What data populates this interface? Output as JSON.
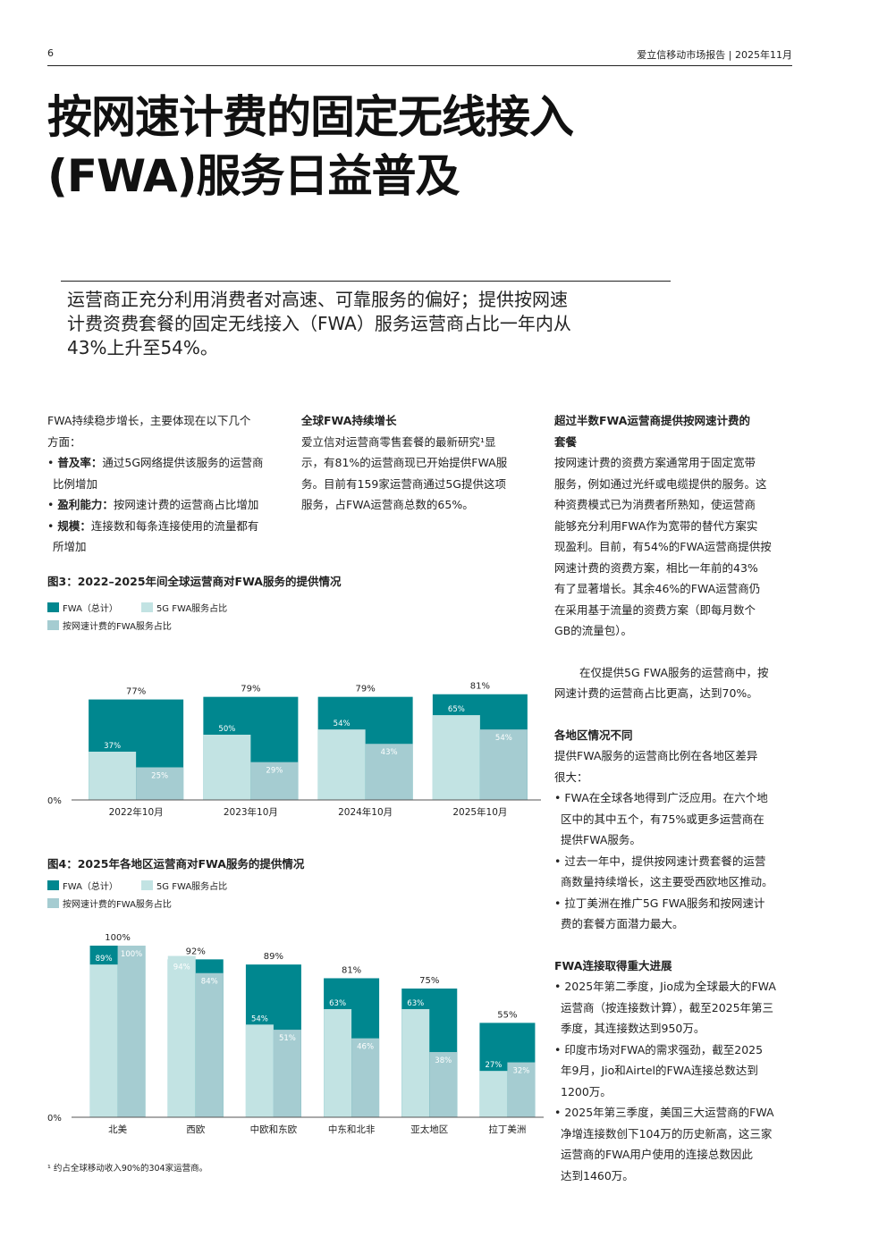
{
  "header": {
    "page_number": "6",
    "running_title": "爱立信移动市场报告 | 2025年11月"
  },
  "title": {
    "line1": "按网速计费的固定无线接入",
    "line2": "(FWA)服务日益普及"
  },
  "lead": {
    "line1": "运营商正充分利用消费者对高速、可靠服务的偏好；提供按网速",
    "line2": "计费资费套餐的固定无线接入（FWA）服务运营商占比一年内从",
    "line3": "43%上升至54%。"
  },
  "col1": {
    "intro1": "FWA持续稳步增长，主要体现在以下几个",
    "intro2": "方面：",
    "b1_term": "普及率：",
    "b1_text": "通过5G网络提供该服务的运营商",
    "b1_cont": "比例增加",
    "b2_term": "盈利能力：",
    "b2_text": "按网速计费的运营商占比增加",
    "b3_term": "规模：",
    "b3_text": "连接数和每条连接使用的流量都有",
    "b3_cont": "所增加"
  },
  "col2": {
    "heading": "全球FWA持续增长",
    "l1": "爱立信对运营商零售套餐的最新研究¹显",
    "l2": "示，有81%的运营商现已开始提供FWA服",
    "l3": "务。目前有159家运营商通过5G提供这项",
    "l4": "服务，占FWA运营商总数的65%。"
  },
  "col3": {
    "h1a": "超过半数FWA运营商提供按网速计费的",
    "h1b": "套餐",
    "p1": [
      "按网速计费的资费方案通常用于固定宽带",
      "服务，例如通过光纤或电缆提供的服务。这",
      "种资费模式已为消费者所熟知，使运营商",
      "能够充分利用FWA作为宽带的替代方案实",
      "现盈利。目前，有54%的FWA运营商提供按",
      "网速计费的资费方案，相比一年前的43%",
      "有了显著增长。其余46%的FWA运营商仍",
      "在采用基于流量的资费方案（即每月数个",
      "GB的流量包）。"
    ],
    "p2a": "在仅提供5G FWA服务的运营商中，按",
    "p2b": "网速计费的运营商占比更高，达到70%。",
    "h2": "各地区情况不同",
    "p3a": "提供FWA服务的运营商比例在各地区差异",
    "p3b": "很大：",
    "b1a": "• FWA在全球各地得到广泛应用。在六个地",
    "b1b": "区中的其中五个，有75%或更多运营商在",
    "b1c": "提供FWA服务。",
    "b2a": "• 过去一年中，提供按网速计费套餐的运营",
    "b2b": "商数量持续增长，这主要受西欧地区推动。",
    "b3a": "• 拉丁美洲在推广5G FWA服务和按网速计",
    "b3b": "费的套餐方面潜力最大。",
    "h3": "FWA连接取得重大进展",
    "c1a": "• 2025年第二季度，Jio成为全球最大的FWA",
    "c1b": "运营商（按连接数计算），截至2025年第三",
    "c1c": "季度，其连接数达到950万。",
    "c2a": "• 印度市场对FWA的需求强劲，截至2025",
    "c2b": "年9月，Jio和Airtel的FWA连接总数达到",
    "c2c": "1200万。",
    "c3a": "• 2025年第三季度，美国三大运营商的FWA",
    "c3b": "净增连接数创下104万的历史新高，这三家",
    "c3c": "运营商的FWA用户使用的连接总数因此",
    "c3d": "达到1460万。"
  },
  "legend": {
    "total": "FWA（总计）",
    "g5": "5G FWA服务占比",
    "speed": "按网速计费的FWA服务占比"
  },
  "colors": {
    "total": "#00878f",
    "g5": "#c2e3e3",
    "speed": "#a5ccd1"
  },
  "chart_data": [
    {
      "type": "bar",
      "title": "图3：2022–2025年间全球运营商对FWA服务的提供情况",
      "categories": [
        "2022年10月",
        "2023年10月",
        "2024年10月",
        "2025年10月"
      ],
      "series": [
        {
          "name": "FWA（总计）",
          "values": [
            77,
            79,
            79,
            81
          ]
        },
        {
          "name": "5G FWA服务占比",
          "values": [
            37,
            50,
            54,
            65
          ]
        },
        {
          "name": "按网速计费的FWA服务占比",
          "values": [
            25,
            29,
            43,
            54
          ]
        }
      ],
      "y_tick_label": "0%",
      "ylim": [
        0,
        100
      ]
    },
    {
      "type": "bar",
      "title": "图4：2025年各地区运营商对FWA服务的提供情况",
      "categories": [
        "北美",
        "西欧",
        "中欧和东欧",
        "中东和北非",
        "亚太地区",
        "拉丁美洲"
      ],
      "series": [
        {
          "name": "FWA（总计）",
          "values": [
            100,
            92,
            89,
            81,
            75,
            55
          ]
        },
        {
          "name": "5G FWA服务占比",
          "values": [
            89,
            94,
            54,
            63,
            63,
            27
          ]
        },
        {
          "name": "按网速计费的FWA服务占比",
          "values": [
            100,
            84,
            51,
            46,
            38,
            32
          ]
        }
      ],
      "y_tick_label": "0%",
      "ylim": [
        0,
        100
      ]
    }
  ],
  "footnote": "¹ 约占全球移动收入90%的304家运营商。"
}
